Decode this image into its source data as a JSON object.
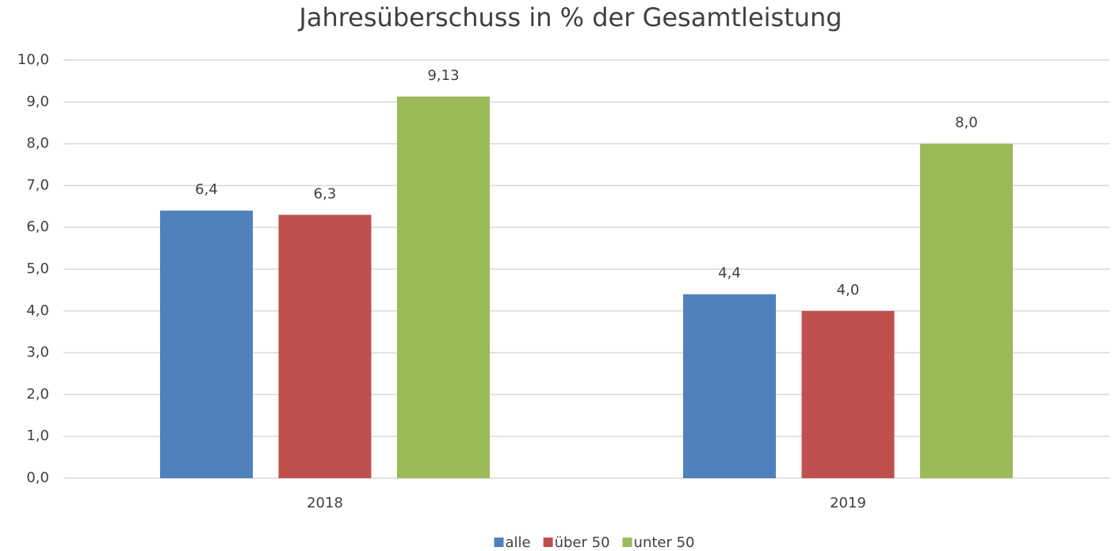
{
  "chart_data": {
    "type": "bar",
    "title": "Jahresüberschuss in % der Gesamtleistung",
    "categories": [
      "2018",
      "2019"
    ],
    "series": [
      {
        "name": "alle",
        "color": "#4f81bd",
        "values": [
          6.4,
          4.4
        ],
        "value_labels": [
          "6,4",
          "4,4"
        ]
      },
      {
        "name": "über 50",
        "color": "#c0504d",
        "values": [
          6.3,
          4.0
        ],
        "value_labels": [
          "6,3",
          "4,0"
        ]
      },
      {
        "name": "unter 50",
        "color": "#9bbb59",
        "values": [
          9.13,
          8.0
        ],
        "value_labels": [
          "9,13",
          "8,0"
        ]
      }
    ],
    "ylim": [
      0,
      10
    ],
    "yticks": [
      {
        "value": 0,
        "label": "0,0"
      },
      {
        "value": 1,
        "label": "1,0"
      },
      {
        "value": 2,
        "label": "2,0"
      },
      {
        "value": 3,
        "label": "3,0"
      },
      {
        "value": 4,
        "label": "4,0"
      },
      {
        "value": 5,
        "label": "5,0"
      },
      {
        "value": 6,
        "label": "6,0"
      },
      {
        "value": 7,
        "label": "7,0"
      },
      {
        "value": 8,
        "label": "8,0"
      },
      {
        "value": 9,
        "label": "9,0"
      },
      {
        "value": 10,
        "label": "10,0"
      }
    ],
    "grid": true,
    "legend": "bottom"
  }
}
